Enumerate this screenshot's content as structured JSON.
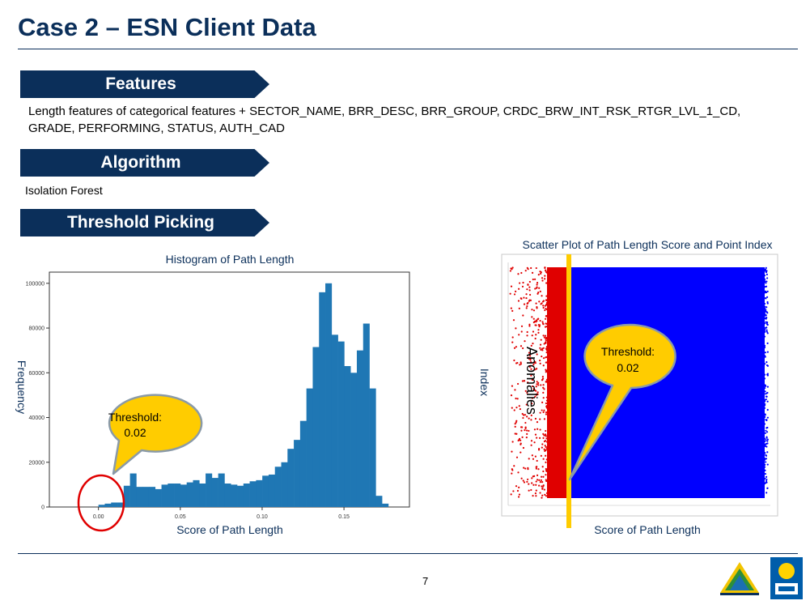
{
  "title": "Case 2 – ESN Client Data",
  "sections": {
    "features": {
      "heading": "Features",
      "text_line1": "Length features of categorical features + SECTOR_NAME, BRR_DESC, BRR_GROUP, CRDC_BRW_INT_RSK_RTGR_LVL_1_CD,",
      "text_line2": "GRADE, PERFORMING, STATUS, AUTH_CAD"
    },
    "algorithm": {
      "heading": "Algorithm",
      "text": "Isolation Forest"
    },
    "threshold": {
      "heading": "Threshold Picking"
    }
  },
  "histogram": {
    "title": "Histogram of Path Length",
    "xlabel": "Score of Path Length",
    "ylabel": "Frequency",
    "callout": {
      "line1": "Threshold:",
      "line2": "0.02"
    }
  },
  "scatter": {
    "title": "Scatter Plot of Path Length Score and Point Index",
    "xlabel": "Score of Path Length",
    "ylabel": "Index",
    "anomalies_label": "Anomalies",
    "callout": {
      "line1": "Threshold:",
      "line2": "0.02"
    }
  },
  "page_number": "7",
  "colors": {
    "navy": "#0b2f5a",
    "bar": "#1f77b4",
    "callout": "#ffcc00",
    "red": "#e00000",
    "blue": "#0000ff"
  },
  "chart_data": [
    {
      "type": "bar",
      "title": "Histogram of Path Length",
      "xlabel": "Score of Path Length",
      "ylabel": "Frequency",
      "xlim": [
        -0.03,
        0.19
      ],
      "ylim": [
        0,
        105000
      ],
      "x_ticks": [
        0.0,
        0.05,
        0.1,
        0.15
      ],
      "x_tick_labels": [
        "0.00",
        "0.05",
        "0.10",
        "0.15"
      ],
      "y_ticks": [
        0,
        20000,
        40000,
        60000,
        80000,
        100000
      ],
      "bin_width": 0.00385,
      "bin_starts": [
        0.0,
        0.00385,
        0.0077,
        0.01155,
        0.0154,
        0.01925,
        0.0231,
        0.02695,
        0.0308,
        0.03465,
        0.0385,
        0.04235,
        0.0462,
        0.05005,
        0.0539,
        0.05775,
        0.0616,
        0.06545,
        0.0693,
        0.07315,
        0.077,
        0.08085,
        0.0847,
        0.08855,
        0.0924,
        0.09625,
        0.1001,
        0.10395,
        0.1078,
        0.11165,
        0.1155,
        0.11935,
        0.1232,
        0.12705,
        0.1309,
        0.13475,
        0.1386,
        0.14245,
        0.1463,
        0.15015,
        0.154,
        0.15785,
        0.1617,
        0.16555,
        0.1694,
        0.17325,
        0.1771,
        0.18095
      ],
      "values": [
        1000,
        1500,
        2000,
        2000,
        9500,
        15000,
        9000,
        9000,
        9000,
        8000,
        10000,
        10500,
        10500,
        10000,
        11000,
        12000,
        10500,
        15000,
        13000,
        15000,
        10500,
        10000,
        9500,
        10500,
        11500,
        12000,
        14000,
        14500,
        18000,
        20000,
        26000,
        30000,
        38500,
        53000,
        71500,
        96000,
        100000,
        77000,
        74000,
        63000,
        60000,
        70000,
        82000,
        53000,
        5000,
        1500,
        0,
        0
      ],
      "threshold": 0.02,
      "annotations": [
        "Threshold:",
        "0.02"
      ]
    },
    {
      "type": "scatter",
      "title": "Scatter Plot of Path Length Score and Point Index",
      "xlabel": "Score of Path Length",
      "ylabel": "Index",
      "threshold": 0.02,
      "series": [
        {
          "name": "Anomalies",
          "color": "#e00000",
          "x_range": [
            0.0,
            0.02
          ]
        },
        {
          "color": "#0000ff",
          "x_range": [
            0.02,
            0.18
          ]
        }
      ],
      "annotations": [
        "Anomalies",
        "Threshold:",
        "0.02"
      ]
    }
  ]
}
